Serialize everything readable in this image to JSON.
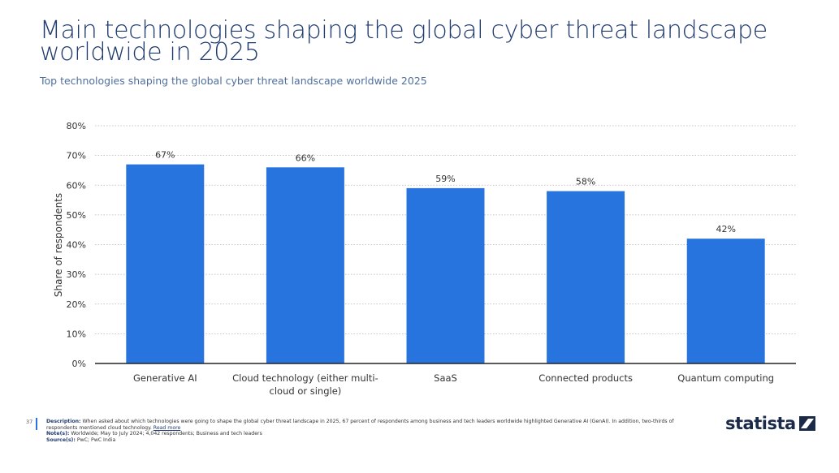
{
  "header": {
    "title": "Main technologies shaping the global cyber threat landscape worldwide in 2025",
    "subtitle": "Top technologies shaping the global cyber threat landscape worldwide 2025"
  },
  "chart_data": {
    "type": "bar",
    "title": "Main technologies shaping the global cyber threat landscape worldwide in 2025",
    "subtitle": "Top technologies shaping the global cyber threat landscape worldwide 2025",
    "categories": [
      [
        "Generative AI"
      ],
      [
        "Cloud technology (either multi-",
        "cloud or single)"
      ],
      [
        "SaaS"
      ],
      [
        "Connected products"
      ],
      [
        "Quantum computing"
      ]
    ],
    "values": [
      67,
      66,
      59,
      58,
      42
    ],
    "value_labels": [
      "67%",
      "66%",
      "59%",
      "58%",
      "42%"
    ],
    "xlabel": "",
    "ylabel": "Share of respondents",
    "ylim": [
      0,
      80
    ],
    "yticks": [
      0,
      10,
      20,
      30,
      40,
      50,
      60,
      70,
      80
    ],
    "ytick_labels": [
      "0%",
      "10%",
      "20%",
      "30%",
      "40%",
      "50%",
      "60%",
      "70%",
      "80%"
    ],
    "grid": true,
    "bar_color": "#2874de"
  },
  "footer": {
    "page_number": "37",
    "description_label": "Description:",
    "description_text": "When asked about which technologies were going to shape the global cyber threat landscape in 2025, 67 percent of respondents among business and tech leaders worldwide highlighted Generative AI (GenAI). In addition, two-thirds of respondents mentioned cloud technology.",
    "read_more": "Read more",
    "note_label": "Note(s):",
    "note_text": "Worldwide; May to July 2024; 4,042 respondents; Business and tech leaders",
    "source_label": "Source(s):",
    "source_text": "PwC; PwC India"
  },
  "logo": {
    "text": "statista"
  },
  "colors": {
    "accent": "#2874de",
    "title": "#1f3a6e",
    "logo": "#1a2a48"
  }
}
